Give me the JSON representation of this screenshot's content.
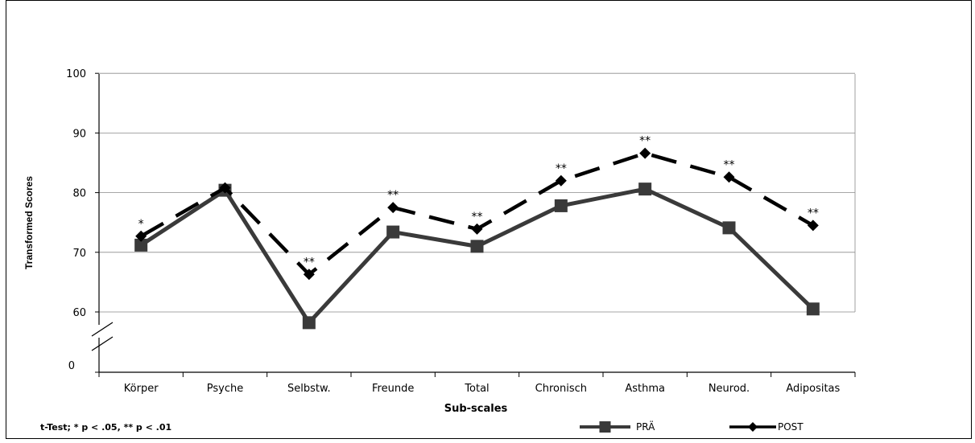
{
  "chart_data": {
    "type": "line",
    "xlabel": "Sub-scales",
    "ylabel": "Transformed Scores",
    "categories": [
      "Körper",
      "Psyche",
      "Selbstw.",
      "Freunde",
      "Total",
      "Chronisch",
      "Asthma",
      "Neurod.",
      "Adipositas"
    ],
    "yticks": [
      "100",
      "90",
      "80",
      "70",
      "60",
      "0"
    ],
    "ylim": [
      55,
      100
    ],
    "axis_break": true,
    "grid": true,
    "legend_position": "bottom-right",
    "series": [
      {
        "name": "PRÄ",
        "values": [
          71.2,
          80.4,
          58.2,
          73.4,
          71.0,
          77.8,
          80.6,
          74.1,
          60.5
        ],
        "color": "#3a3a3a",
        "marker": "square",
        "dash": "solid"
      },
      {
        "name": "POST",
        "values": [
          72.7,
          80.8,
          66.3,
          77.5,
          73.9,
          82.0,
          86.6,
          82.6,
          74.5
        ],
        "color": "#000000",
        "marker": "diamond",
        "dash": "dashed"
      }
    ],
    "significance": [
      "*",
      "",
      "**",
      "**",
      "**",
      "**",
      "**",
      "**",
      "**"
    ],
    "note": "t-Test; * p < .05, ** p < .01"
  }
}
